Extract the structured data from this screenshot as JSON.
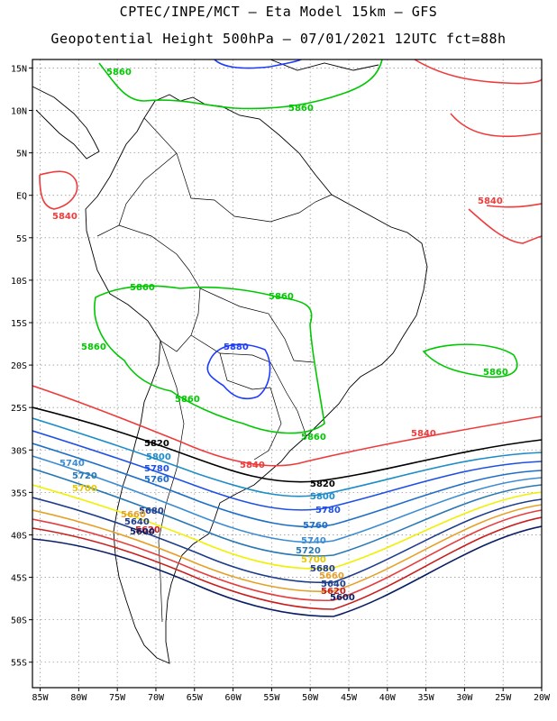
{
  "title": {
    "line1": "CPTEC/INPE/MCT –  Eta Model 15km – GFS",
    "line2": "Geopotential Height 500hPa – 07/01/2021 12UTC fct=88h"
  },
  "map": {
    "lon_range": [
      -86,
      -20
    ],
    "lat_range": [
      -58,
      16
    ],
    "lon_ticks": [
      "85W",
      "80W",
      "75W",
      "70W",
      "65W",
      "60W",
      "55W",
      "50W",
      "45W",
      "40W",
      "35W",
      "30W",
      "25W",
      "20W"
    ],
    "lat_ticks": [
      "15N",
      "10N",
      "5N",
      "EQ",
      "5S",
      "10S",
      "15S",
      "20S",
      "25S",
      "30S",
      "35S",
      "40S",
      "45S",
      "50S",
      "55S"
    ],
    "gridlines": true
  },
  "contours": [
    {
      "value": "5880",
      "color": "#1e3cff"
    },
    {
      "value": "5860",
      "color": "#00c800"
    },
    {
      "value": "5840",
      "color": "#ef3b3b"
    },
    {
      "value": "5820",
      "color": "#000000"
    },
    {
      "value": "5800",
      "color": "#1e8cc8"
    },
    {
      "value": "5780",
      "color": "#1e50e6"
    },
    {
      "value": "5760",
      "color": "#1e6ec8"
    },
    {
      "value": "5740",
      "color": "#3c8cd2"
    },
    {
      "value": "5720",
      "color": "#2878b4"
    },
    {
      "value": "5700",
      "color": "#f0f000"
    },
    {
      "value": "5680",
      "color": "#1e3c8c"
    },
    {
      "value": "5660",
      "color": "#e6a028"
    },
    {
      "value": "5640",
      "color": "#e63c3c"
    },
    {
      "value": "5620",
      "color": "#c81e1e"
    },
    {
      "value": "5600",
      "color": "#0a1e64"
    }
  ]
}
